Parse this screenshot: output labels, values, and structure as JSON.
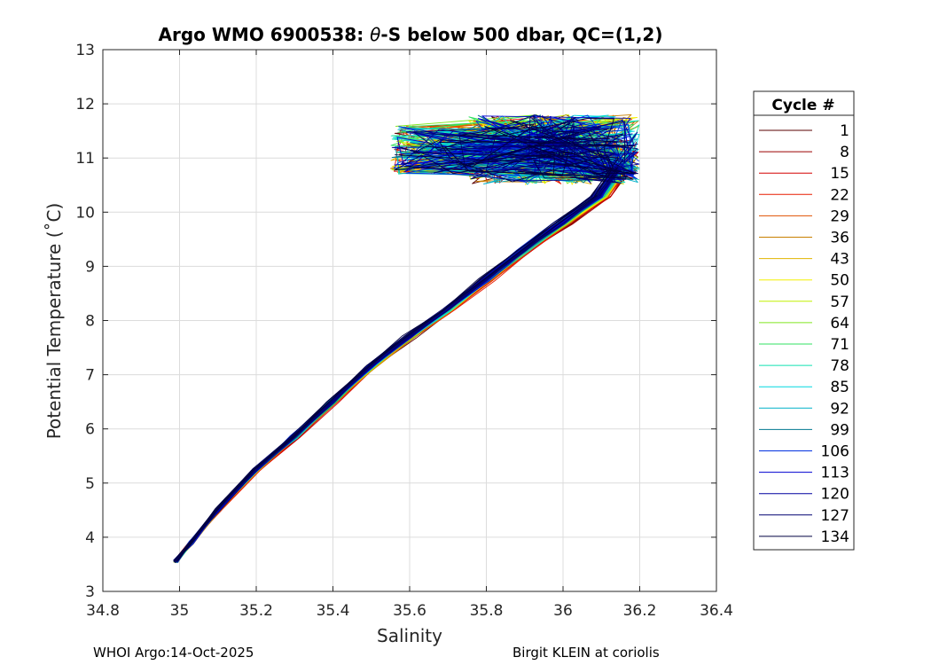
{
  "chart_data": {
    "type": "line",
    "title_parts": {
      "prefix": "Argo WMO 6900538: ",
      "theta": "θ",
      "suffix": "-S below 500 dbar,  QC=(1,2)"
    },
    "xlabel": "Salinity",
    "ylabel": "Potential Temperature (˚C)",
    "xlim": [
      34.8,
      36.4
    ],
    "ylim": [
      3,
      13
    ],
    "xticks": [
      34.8,
      35,
      35.2,
      35.4,
      35.6,
      35.8,
      36,
      36.2,
      36.4
    ],
    "xtick_labels": [
      "34.8",
      "35",
      "35.2",
      "35.4",
      "35.6",
      "35.8",
      "36",
      "36.2",
      "36.4"
    ],
    "yticks": [
      3,
      4,
      5,
      6,
      7,
      8,
      9,
      10,
      11,
      12,
      13
    ],
    "ytick_labels": [
      "3",
      "4",
      "5",
      "6",
      "7",
      "8",
      "9",
      "10",
      "11",
      "12",
      "13"
    ],
    "grid": true,
    "legend": {
      "title": "Cycle #",
      "placement": "outside-right",
      "entries": [
        {
          "label": "1",
          "color": "#5a0000"
        },
        {
          "label": "8",
          "color": "#9b0000"
        },
        {
          "label": "15",
          "color": "#d40000"
        },
        {
          "label": "22",
          "color": "#e81c00"
        },
        {
          "label": "29",
          "color": "#e05000"
        },
        {
          "label": "36",
          "color": "#c88000"
        },
        {
          "label": "43",
          "color": "#e0b400"
        },
        {
          "label": "50",
          "color": "#f4f000"
        },
        {
          "label": "57",
          "color": "#c0f000"
        },
        {
          "label": "64",
          "color": "#80e820"
        },
        {
          "label": "71",
          "color": "#30e060"
        },
        {
          "label": "78",
          "color": "#10e0b0"
        },
        {
          "label": "85",
          "color": "#00d8e0"
        },
        {
          "label": "92",
          "color": "#00b0c8"
        },
        {
          "label": "99",
          "color": "#007890"
        },
        {
          "label": "106",
          "color": "#0030e0"
        },
        {
          "label": "113",
          "color": "#0000d0"
        },
        {
          "label": "120",
          "color": "#0000a0"
        },
        {
          "label": "127",
          "color": "#000070"
        },
        {
          "label": "134",
          "color": "#000040"
        }
      ]
    },
    "trend_spine": [
      [
        34.99,
        3.55
      ],
      [
        35.03,
        3.9
      ],
      [
        35.1,
        4.5
      ],
      [
        35.2,
        5.25
      ],
      [
        35.3,
        5.85
      ],
      [
        35.4,
        6.5
      ],
      [
        35.5,
        7.15
      ],
      [
        35.6,
        7.7
      ],
      [
        35.7,
        8.2
      ],
      [
        35.8,
        8.75
      ],
      [
        35.9,
        9.3
      ],
      [
        36.0,
        9.8
      ],
      [
        36.1,
        10.3
      ],
      [
        36.15,
        10.8
      ]
    ],
    "warm_cluster": {
      "s_range": [
        35.55,
        36.2
      ],
      "t_range": [
        10.2,
        11.9
      ]
    },
    "notes": "Each cycle profile below 500 dbar follows a near-linear theta-S path from about (35.0, 3.6 C) to (36.15, 10.8 C), then bends back toward fresher water near 35.5-36.2 psu and 10.4-11.9 C."
  },
  "footer": {
    "left": "WHOI Argo:14-Oct-2025",
    "right": "Birgit KLEIN at coriolis"
  }
}
